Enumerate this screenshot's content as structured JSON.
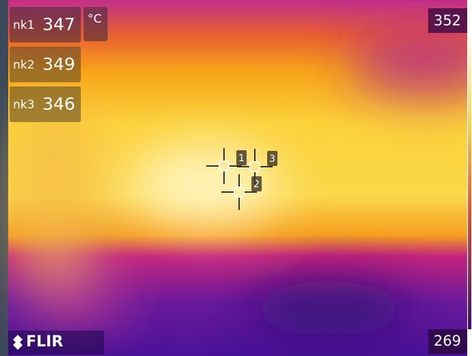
{
  "measurements": [
    {
      "label": "nk1",
      "value": 347
    },
    {
      "label": "nk2",
      "value": 349
    },
    {
      "label": "nk3",
      "value": 346
    }
  ],
  "unit": "°C",
  "scale": {
    "max": 352,
    "min": 269
  },
  "spots": [
    "1",
    "2",
    "3"
  ],
  "brand": "FLIR"
}
